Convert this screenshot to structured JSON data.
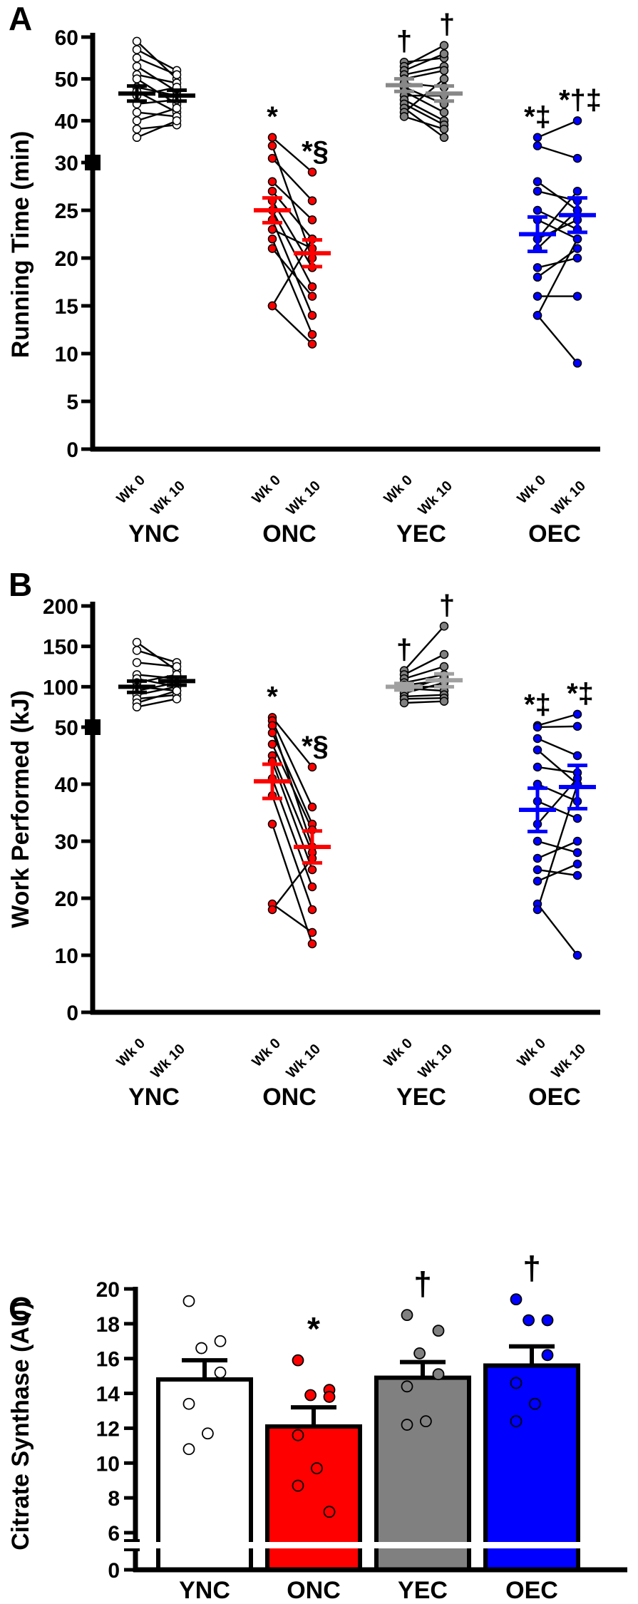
{
  "chart_data": [
    {
      "type": "scatter",
      "panel_label": "A",
      "ylabel": "Running Time (min)",
      "y_lower": {
        "range": [
          0,
          30
        ],
        "ticks": [
          "0",
          "5",
          "10",
          "15",
          "20",
          "25"
        ]
      },
      "y_upper": {
        "range": [
          30,
          60
        ],
        "ticks": [
          "30",
          "40",
          "50",
          "60"
        ]
      },
      "timepoints": [
        "Wk 0",
        "Wk 10"
      ],
      "groups": [
        {
          "name": "YNC",
          "color": "#000000",
          "fill": "#ffffff",
          "mean_color": "#000000",
          "wk0_mean": 46.5,
          "wk0_sem": 1.8,
          "wk10_mean": 46.0,
          "wk10_sem": 1.3,
          "sig_wk0": "",
          "sig_wk10": "",
          "pairs": [
            [
              59,
              50
            ],
            [
              57,
              52
            ],
            [
              55,
              51
            ],
            [
              53,
              47
            ],
            [
              51,
              49
            ],
            [
              50,
              44
            ],
            [
              48,
              46
            ],
            [
              47,
              42
            ],
            [
              46,
              48
            ],
            [
              44,
              45
            ],
            [
              42,
              41
            ],
            [
              40,
              43
            ],
            [
              38,
              39
            ],
            [
              36,
              40
            ]
          ]
        },
        {
          "name": "ONC",
          "color": "#000000",
          "fill": "#ff0000",
          "mean_color": "#ff0000",
          "wk0_mean": 25.0,
          "wk0_sem": 1.3,
          "wk10_mean": 20.5,
          "wk10_sem": 1.4,
          "sig_wk0": "*",
          "sig_wk10": "*§",
          "pairs": [
            [
              36,
              29
            ],
            [
              34,
              20
            ],
            [
              31,
              26
            ],
            [
              28,
              24
            ],
            [
              27,
              22
            ],
            [
              26,
              19
            ],
            [
              25,
              17
            ],
            [
              24,
              14
            ],
            [
              23,
              21
            ],
            [
              22,
              12
            ],
            [
              21,
              16
            ],
            [
              15,
              11
            ],
            [
              15,
              22
            ]
          ]
        },
        {
          "name": "YEC",
          "color": "#000000",
          "fill": "#808080",
          "mean_color": "#888888",
          "wk0_mean": 48.5,
          "wk0_sem": 1.5,
          "wk10_mean": 46.5,
          "wk10_sem": 1.8,
          "sig_wk0": "†",
          "sig_wk10": "†",
          "pairs": [
            [
              54,
              55
            ],
            [
              53,
              58
            ],
            [
              52,
              56
            ],
            [
              51,
              53
            ],
            [
              50,
              52
            ],
            [
              49,
              48
            ],
            [
              48,
              44
            ],
            [
              47,
              42
            ],
            [
              46,
              46
            ],
            [
              45,
              40
            ],
            [
              44,
              39
            ],
            [
              43,
              36
            ],
            [
              42,
              50
            ],
            [
              41,
              38
            ]
          ]
        },
        {
          "name": "OEC",
          "color": "#000000",
          "fill": "#0000ff",
          "mean_color": "#0000ff",
          "wk0_mean": 22.5,
          "wk0_sem": 1.8,
          "wk10_mean": 24.5,
          "wk10_sem": 1.8,
          "sig_wk0": "*‡",
          "sig_wk10": "*†‡",
          "pairs": [
            [
              36,
              40
            ],
            [
              34,
              31
            ],
            [
              28,
              25
            ],
            [
              27,
              26
            ],
            [
              25,
              23
            ],
            [
              24,
              22
            ],
            [
              22,
              24
            ],
            [
              22,
              27
            ],
            [
              21,
              25
            ],
            [
              19,
              20
            ],
            [
              18,
              21
            ],
            [
              16,
              16
            ],
            [
              14,
              22
            ],
            [
              14,
              9
            ]
          ]
        }
      ]
    },
    {
      "type": "scatter",
      "panel_label": "B",
      "ylabel": "Work Performed (kJ)",
      "y_lower": {
        "range": [
          0,
          50
        ],
        "ticks": [
          "0",
          "10",
          "20",
          "30",
          "40"
        ]
      },
      "y_upper": {
        "range": [
          50,
          200
        ],
        "ticks": [
          "50",
          "100",
          "150",
          "200"
        ]
      },
      "timepoints": [
        "Wk 0",
        "Wk 10"
      ],
      "groups": [
        {
          "name": "YNC",
          "color": "#000000",
          "fill": "#ffffff",
          "mean_color": "#000000",
          "wk0_mean": 100,
          "wk0_sem": 7,
          "wk10_mean": 107,
          "wk10_sem": 5,
          "sig_wk0": "",
          "sig_wk10": "",
          "pairs": [
            [
              155,
              120
            ],
            [
              145,
              130
            ],
            [
              130,
              125
            ],
            [
              115,
              110
            ],
            [
              110,
              100
            ],
            [
              105,
              115
            ],
            [
              100,
              95
            ],
            [
              95,
              105
            ],
            [
              90,
              100
            ],
            [
              85,
              90
            ],
            [
              80,
              95
            ],
            [
              75,
              85
            ]
          ]
        },
        {
          "name": "ONC",
          "color": "#000000",
          "fill": "#ff0000",
          "mean_color": "#ff0000",
          "wk0_mean": 40.5,
          "wk0_sem": 3.0,
          "wk10_mean": 29.0,
          "wk10_sem": 2.8,
          "sig_wk0": "*",
          "sig_wk10": "*§",
          "pairs": [
            [
              62,
              43
            ],
            [
              58,
              36
            ],
            [
              52,
              29
            ],
            [
              49,
              33
            ],
            [
              47,
              32
            ],
            [
              45,
              28
            ],
            [
              44,
              25
            ],
            [
              41,
              22
            ],
            [
              38,
              18
            ],
            [
              33,
              12
            ],
            [
              19,
              14
            ],
            [
              18,
              27
            ]
          ]
        },
        {
          "name": "YEC",
          "color": "#000000",
          "fill": "#808080",
          "mean_color": "#a0a0a0",
          "wk0_mean": 100,
          "wk0_sem": 4,
          "wk10_mean": 108,
          "wk10_sem": 8,
          "sig_wk0": "†",
          "sig_wk10": "†",
          "pairs": [
            [
              120,
              175
            ],
            [
              115,
              140
            ],
            [
              110,
              125
            ],
            [
              105,
              115
            ],
            [
              102,
              108
            ],
            [
              100,
              100
            ],
            [
              98,
              95
            ],
            [
              95,
              112
            ],
            [
              92,
              105
            ],
            [
              88,
              90
            ],
            [
              85,
              86
            ],
            [
              80,
              82
            ]
          ]
        },
        {
          "name": "OEC",
          "color": "#000000",
          "fill": "#0000ff",
          "mean_color": "#0000ff",
          "wk0_mean": 35.5,
          "wk0_sem": 3.8,
          "wk10_mean": 39.5,
          "wk10_sem": 3.8,
          "sig_wk0": "*‡",
          "sig_wk10": "*‡",
          "pairs": [
            [
              52,
              66
            ],
            [
              50,
              51
            ],
            [
              48,
              45
            ],
            [
              46,
              40
            ],
            [
              43,
              42
            ],
            [
              40,
              37
            ],
            [
              37,
              34
            ],
            [
              33,
              41
            ],
            [
              30,
              28
            ],
            [
              27,
              30
            ],
            [
              25,
              24
            ],
            [
              23,
              26
            ],
            [
              19,
              10
            ],
            [
              18,
              40
            ]
          ]
        }
      ]
    },
    {
      "type": "bar",
      "panel_label": "C",
      "ylabel": "Citrate Synthase (AU)",
      "ylim": [
        0,
        20
      ],
      "axis_break_below": 6,
      "yticks": [
        "0",
        "6",
        "8",
        "10",
        "12",
        "14",
        "16",
        "18",
        "20"
      ],
      "categories": [
        "YNC",
        "ONC",
        "YEC",
        "OEC"
      ],
      "values": [
        14.8,
        12.1,
        14.9,
        15.6
      ],
      "sem": [
        1.1,
        1.1,
        0.9,
        1.1
      ],
      "fills": [
        "#ffffff",
        "#ff0000",
        "#808080",
        "#0000ff"
      ],
      "significance": [
        "",
        "*",
        "†",
        "†"
      ],
      "points": [
        [
          19.3,
          17.0,
          16.6,
          15.2,
          13.4,
          11.7,
          10.8
        ],
        [
          15.9,
          14.2,
          13.9,
          13.8,
          11.6,
          9.7,
          8.7,
          7.2
        ],
        [
          18.5,
          17.6,
          16.3,
          15.1,
          14.4,
          12.4,
          12.2
        ],
        [
          19.4,
          18.2,
          18.2,
          16.2,
          14.6,
          13.4,
          12.4
        ]
      ]
    }
  ]
}
